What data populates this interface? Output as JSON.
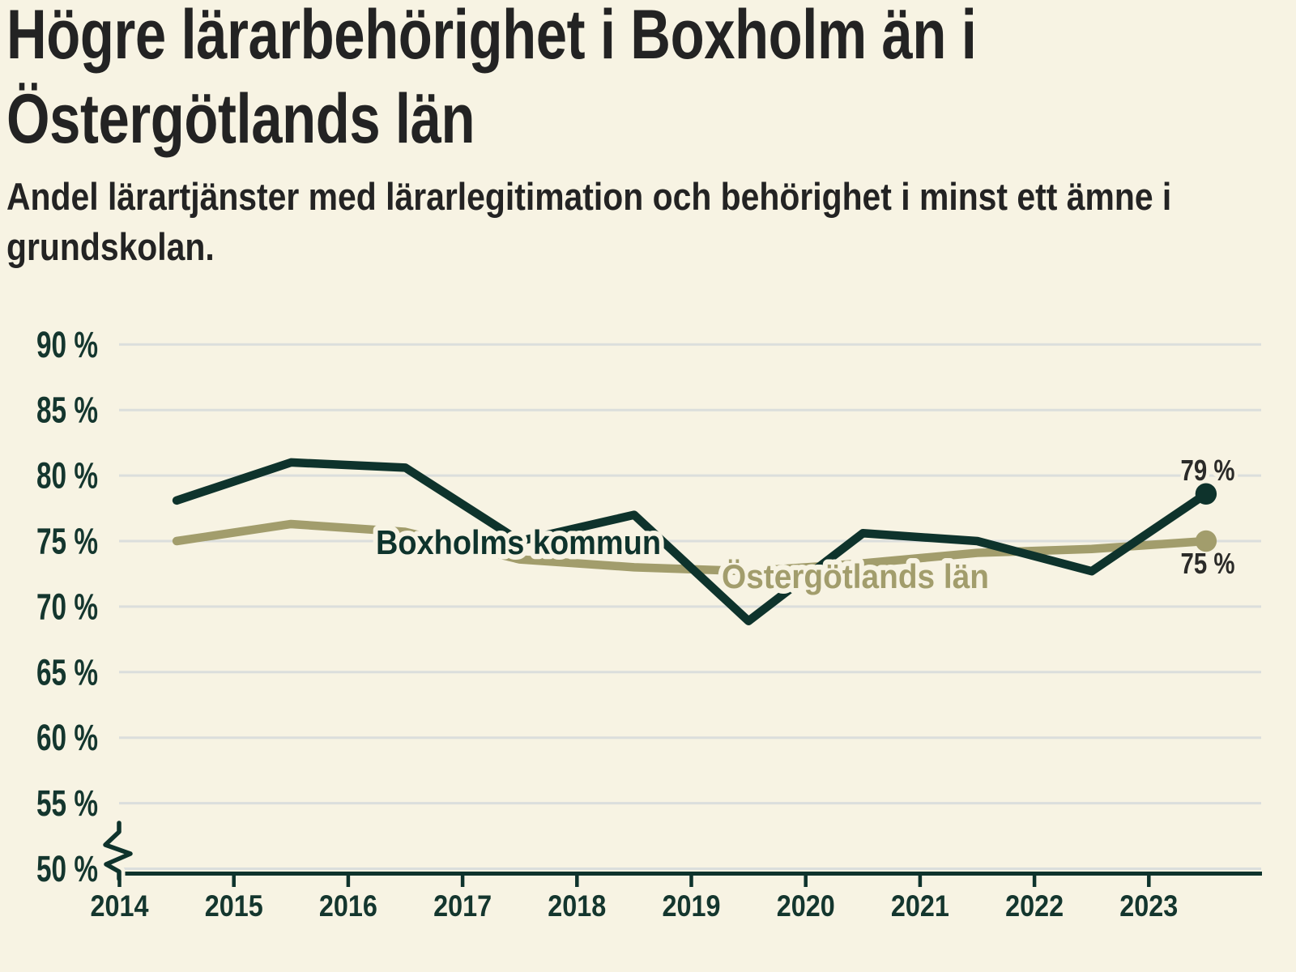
{
  "header": {
    "title_line1": "Högre lärarbehörighet i Boxholm än i",
    "title_line2": "Östergötlands län",
    "subtitle_line1": "Andel lärartjänster med lärarlegitimation och behörighet i minst ett ämne i",
    "subtitle_line2": "grundskolan."
  },
  "colors": {
    "background": "#F7F3E3",
    "gridline": "#DBDEDC",
    "axis": "#0E332C",
    "tick_label": "#14362E",
    "value_label": "#2B2B29",
    "boxholm": "#0E332C",
    "ostergotland": "#A29D6C"
  },
  "chart_data": {
    "type": "line",
    "title": "Högre lärarbehörighet i Boxholm än i Östergötlands län",
    "subtitle": "Andel lärartjänster med lärarlegitimation och behörighet i minst ett ämne i grundskolan.",
    "x": [
      2014.5,
      2015.5,
      2016.5,
      2017.5,
      2018.5,
      2019.5,
      2020.5,
      2021.5,
      2022.5,
      2023.5
    ],
    "series": [
      {
        "name": "Boxholms kommun",
        "color": "#0E332C",
        "values": [
          78.1,
          81.0,
          80.6,
          75.0,
          77.0,
          68.9,
          75.6,
          75.0,
          72.7,
          78.6
        ],
        "end_label": "79 %"
      },
      {
        "name": "Östergötlands län",
        "color": "#A29D6C",
        "values": [
          75.0,
          76.3,
          75.7,
          73.6,
          73.0,
          72.7,
          73.3,
          74.1,
          74.4,
          75.0
        ],
        "end_label": "75 %"
      }
    ],
    "x_ticks": [
      {
        "value": 2014,
        "label": "2014"
      },
      {
        "value": 2015,
        "label": "2015"
      },
      {
        "value": 2016,
        "label": "2016"
      },
      {
        "value": 2017,
        "label": "2017"
      },
      {
        "value": 2018,
        "label": "2018"
      },
      {
        "value": 2019,
        "label": "2019"
      },
      {
        "value": 2020,
        "label": "2020"
      },
      {
        "value": 2021,
        "label": "2021"
      },
      {
        "value": 2022,
        "label": "2022"
      },
      {
        "value": 2023,
        "label": "2023"
      }
    ],
    "y_ticks": [
      {
        "value": 50,
        "label": "50 %"
      },
      {
        "value": 55,
        "label": "55 %"
      },
      {
        "value": 60,
        "label": "60 %"
      },
      {
        "value": 65,
        "label": "65 %"
      },
      {
        "value": 70,
        "label": "70 %"
      },
      {
        "value": 75,
        "label": "75 %"
      },
      {
        "value": 80,
        "label": "80 %"
      },
      {
        "value": 85,
        "label": "85 %"
      },
      {
        "value": 90,
        "label": "90 %"
      }
    ],
    "ylim": [
      50,
      90
    ],
    "grid": true,
    "axis_break": true,
    "legend_position": "inline-labels"
  }
}
